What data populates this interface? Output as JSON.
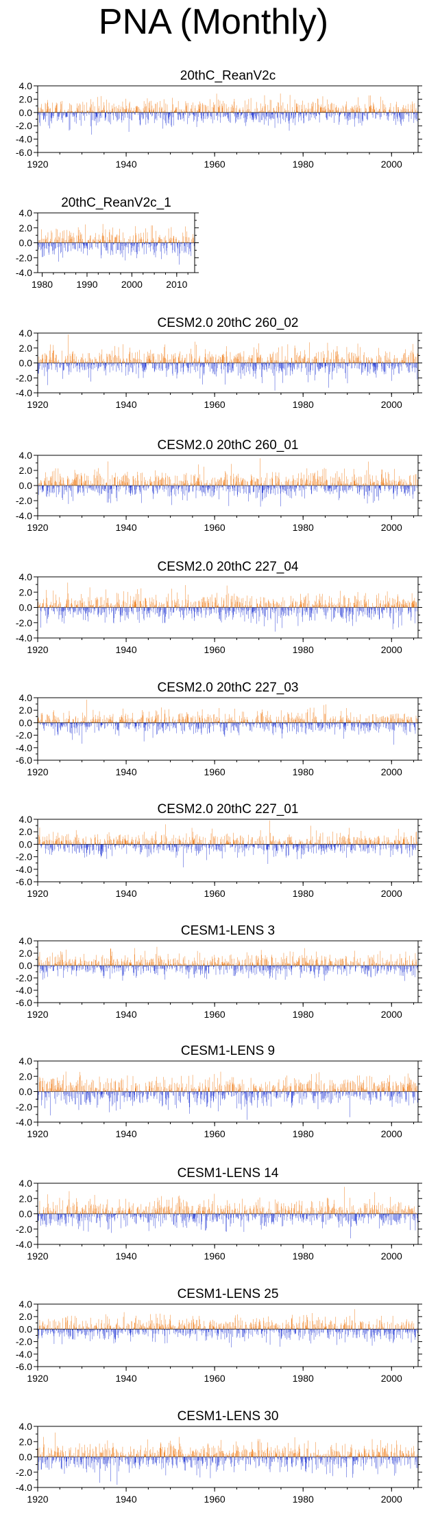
{
  "page_title": "PNA (Monthly)",
  "colors": {
    "positive": "#f08020",
    "negative": "#2b3fd6",
    "axis": "#000000"
  },
  "chart_data": [
    {
      "type": "bar",
      "title": "20thC_ReanV2c",
      "x_start": 1920,
      "x_end": 2006,
      "xticks": [
        "1920",
        "1940",
        "1960",
        "1980",
        "2000"
      ],
      "yticks": [
        "4.0",
        "2.0",
        "0.0",
        "-2.0",
        "-4.0",
        "-6.0"
      ],
      "ylim": [
        -6,
        4
      ],
      "grid": false
    },
    {
      "type": "bar",
      "title": "20thC_ReanV2c_1",
      "x_start": 1979,
      "x_end": 2014,
      "xticks": [
        "1980",
        "1990",
        "2000",
        "2010"
      ],
      "yticks": [
        "4.0",
        "2.0",
        "0.0",
        "-2.0",
        "-4.0"
      ],
      "ylim": [
        -4,
        4
      ],
      "grid": false
    },
    {
      "type": "bar",
      "title": "CESM2.0 20thC 260_02",
      "x_start": 1920,
      "x_end": 2006,
      "xticks": [
        "1920",
        "1940",
        "1960",
        "1980",
        "2000"
      ],
      "yticks": [
        "4.0",
        "2.0",
        "0.0",
        "-2.0",
        "-4.0"
      ],
      "ylim": [
        -4,
        4
      ],
      "grid": false
    },
    {
      "type": "bar",
      "title": "CESM2.0 20thC 260_01",
      "x_start": 1920,
      "x_end": 2006,
      "xticks": [
        "1920",
        "1940",
        "1960",
        "1980",
        "2000"
      ],
      "yticks": [
        "4.0",
        "2.0",
        "0.0",
        "-2.0",
        "-4.0"
      ],
      "ylim": [
        -4,
        4
      ],
      "grid": false
    },
    {
      "type": "bar",
      "title": "CESM2.0 20thC 227_04",
      "x_start": 1920,
      "x_end": 2006,
      "xticks": [
        "1920",
        "1940",
        "1960",
        "1980",
        "2000"
      ],
      "yticks": [
        "4.0",
        "2.0",
        "0.0",
        "-2.0",
        "-4.0"
      ],
      "ylim": [
        -4,
        4
      ],
      "grid": false
    },
    {
      "type": "bar",
      "title": "CESM2.0 20thC 227_03",
      "x_start": 1920,
      "x_end": 2006,
      "xticks": [
        "1920",
        "1940",
        "1960",
        "1980",
        "2000"
      ],
      "yticks": [
        "4.0",
        "2.0",
        "0.0",
        "-2.0",
        "-4.0",
        "-6.0"
      ],
      "ylim": [
        -6,
        4
      ],
      "grid": false
    },
    {
      "type": "bar",
      "title": "CESM2.0 20thC 227_01",
      "x_start": 1920,
      "x_end": 2006,
      "xticks": [
        "1920",
        "1940",
        "1960",
        "1980",
        "2000"
      ],
      "yticks": [
        "4.0",
        "2.0",
        "0.0",
        "-2.0",
        "-4.0",
        "-6.0"
      ],
      "ylim": [
        -6,
        4
      ],
      "grid": false
    },
    {
      "type": "bar",
      "title": "CESM1-LENS 3",
      "x_start": 1920,
      "x_end": 2006,
      "xticks": [
        "1920",
        "1940",
        "1960",
        "1980",
        "2000"
      ],
      "yticks": [
        "4.0",
        "2.0",
        "0.0",
        "-2.0",
        "-4.0",
        "-6.0"
      ],
      "ylim": [
        -6,
        4
      ],
      "grid": false
    },
    {
      "type": "bar",
      "title": "CESM1-LENS 9",
      "x_start": 1920,
      "x_end": 2006,
      "xticks": [
        "1920",
        "1940",
        "1960",
        "1980",
        "2000"
      ],
      "yticks": [
        "4.0",
        "2.0",
        "0.0",
        "-2.0",
        "-4.0"
      ],
      "ylim": [
        -4,
        4
      ],
      "grid": false
    },
    {
      "type": "bar",
      "title": "CESM1-LENS 14",
      "x_start": 1920,
      "x_end": 2006,
      "xticks": [
        "1920",
        "1940",
        "1960",
        "1980",
        "2000"
      ],
      "yticks": [
        "4.0",
        "2.0",
        "0.0",
        "-2.0",
        "-4.0"
      ],
      "ylim": [
        -4,
        4
      ],
      "grid": false
    },
    {
      "type": "bar",
      "title": "CESM1-LENS 25",
      "x_start": 1920,
      "x_end": 2006,
      "xticks": [
        "1920",
        "1940",
        "1960",
        "1980",
        "2000"
      ],
      "yticks": [
        "4.0",
        "2.0",
        "0.0",
        "-2.0",
        "-4.0",
        "-6.0"
      ],
      "ylim": [
        -6,
        4
      ],
      "grid": false
    },
    {
      "type": "bar",
      "title": "CESM1-LENS 30",
      "x_start": 1920,
      "x_end": 2006,
      "xticks": [
        "1920",
        "1940",
        "1960",
        "1980",
        "2000"
      ],
      "yticks": [
        "4.0",
        "2.0",
        "0.0",
        "-2.0",
        "-4.0"
      ],
      "ylim": [
        -4,
        4
      ],
      "grid": false
    }
  ]
}
